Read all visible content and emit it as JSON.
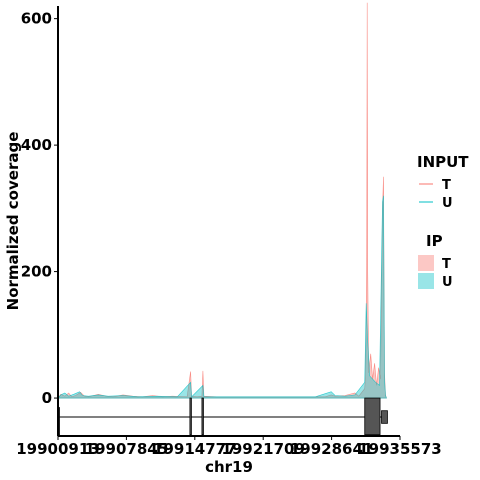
{
  "chart_data": {
    "type": "area",
    "xlabel": "chr19",
    "ylabel": "Normalized coverage",
    "xlim": [
      19900913,
      19935573
    ],
    "ylim": [
      -60,
      620
    ],
    "x_ticks": [
      19900913,
      19907845,
      19914777,
      19921709,
      19928641,
      19935573
    ],
    "x_tick_labels": [
      "19900913",
      "19907845",
      "19914777",
      "19921709",
      "19928641",
      "19935573"
    ],
    "y_ticks": [
      0,
      200,
      400,
      600
    ],
    "y_tick_labels": [
      "0",
      "200",
      "400",
      "600"
    ],
    "legend_placement": "right",
    "legend": {
      "input_title": "INPUT",
      "input_items": [
        {
          "label": "T",
          "color": "#F8766D"
        },
        {
          "label": "U",
          "color": "#00BFC4"
        }
      ],
      "ip_title": "IP",
      "ip_items": [
        {
          "label": "T",
          "color": "#F8766D"
        },
        {
          "label": "U",
          "color": "#00BFC4"
        }
      ]
    },
    "series": [
      {
        "track": "IP",
        "name": "T",
        "color": "#F8766D",
        "points": [
          [
            19900913,
            0
          ],
          [
            19901200,
            6
          ],
          [
            19901600,
            3
          ],
          [
            19902000,
            8
          ],
          [
            19902300,
            2
          ],
          [
            19902700,
            4
          ],
          [
            19903200,
            9
          ],
          [
            19903600,
            3
          ],
          [
            19904000,
            2
          ],
          [
            19905000,
            6
          ],
          [
            19905800,
            3
          ],
          [
            19906500,
            2
          ],
          [
            19907500,
            5
          ],
          [
            19908500,
            3
          ],
          [
            19909500,
            2
          ],
          [
            19910500,
            4
          ],
          [
            19911500,
            2
          ],
          [
            19912500,
            3
          ],
          [
            19914000,
            2
          ],
          [
            19914350,
            42
          ],
          [
            19914450,
            3
          ],
          [
            19915000,
            2
          ],
          [
            19915500,
            3
          ],
          [
            19915600,
            43
          ],
          [
            19915700,
            3
          ],
          [
            19917000,
            2
          ],
          [
            19919000,
            2
          ],
          [
            19921000,
            2
          ],
          [
            19923000,
            2
          ],
          [
            19925000,
            2
          ],
          [
            19927000,
            2
          ],
          [
            19928000,
            2
          ],
          [
            19928600,
            5
          ],
          [
            19929000,
            3
          ],
          [
            19930000,
            4
          ],
          [
            19931000,
            8
          ],
          [
            19931400,
            3
          ],
          [
            19932000,
            15
          ],
          [
            19932100,
            40
          ],
          [
            19932200,
            220
          ],
          [
            19932250,
            625
          ],
          [
            19932300,
            200
          ],
          [
            19932400,
            40
          ],
          [
            19932600,
            70
          ],
          [
            19932800,
            30
          ],
          [
            19933000,
            55
          ],
          [
            19933200,
            20
          ],
          [
            19933400,
            48
          ],
          [
            19933600,
            30
          ],
          [
            19933800,
            300
          ],
          [
            19933900,
            350
          ],
          [
            19934000,
            40
          ],
          [
            19934100,
            5
          ],
          [
            19934200,
            0
          ]
        ]
      },
      {
        "track": "IP",
        "name": "U",
        "color": "#00BFC4",
        "points": [
          [
            19900913,
            0
          ],
          [
            19901200,
            5
          ],
          [
            19901600,
            8
          ],
          [
            19902000,
            3
          ],
          [
            19902500,
            6
          ],
          [
            19903100,
            10
          ],
          [
            19903400,
            4
          ],
          [
            19904000,
            3
          ],
          [
            19905000,
            5
          ],
          [
            19906000,
            3
          ],
          [
            19907500,
            4
          ],
          [
            19909000,
            2
          ],
          [
            19911000,
            3
          ],
          [
            19913000,
            2
          ],
          [
            19914350,
            25
          ],
          [
            19914450,
            2
          ],
          [
            19915600,
            20
          ],
          [
            19915700,
            2
          ],
          [
            19918000,
            2
          ],
          [
            19921000,
            2
          ],
          [
            19924000,
            2
          ],
          [
            19927000,
            2
          ],
          [
            19928600,
            10
          ],
          [
            19929000,
            4
          ],
          [
            19930000,
            3
          ],
          [
            19931000,
            5
          ],
          [
            19932000,
            25
          ],
          [
            19932150,
            150
          ],
          [
            19932300,
            90
          ],
          [
            19932500,
            35
          ],
          [
            19932800,
            30
          ],
          [
            19933100,
            25
          ],
          [
            19933500,
            20
          ],
          [
            19933800,
            310
          ],
          [
            19933900,
            320
          ],
          [
            19934000,
            30
          ],
          [
            19934100,
            4
          ],
          [
            19934200,
            0
          ]
        ]
      }
    ],
    "gene_track": {
      "line_y": -30,
      "exons": [
        {
          "start": 19900913,
          "end": 19901050,
          "y_top": -15,
          "y_bottom": -58
        },
        {
          "start": 19914280,
          "end": 19914420,
          "y_top": 0,
          "y_bottom": -58
        },
        {
          "start": 19915500,
          "end": 19915640,
          "y_top": 0,
          "y_bottom": -58
        },
        {
          "start": 19932000,
          "end": 19933550,
          "y_top": 0,
          "y_bottom": -58
        },
        {
          "start": 19933700,
          "end": 19934300,
          "y_top": -20,
          "y_bottom": -40
        }
      ]
    }
  }
}
